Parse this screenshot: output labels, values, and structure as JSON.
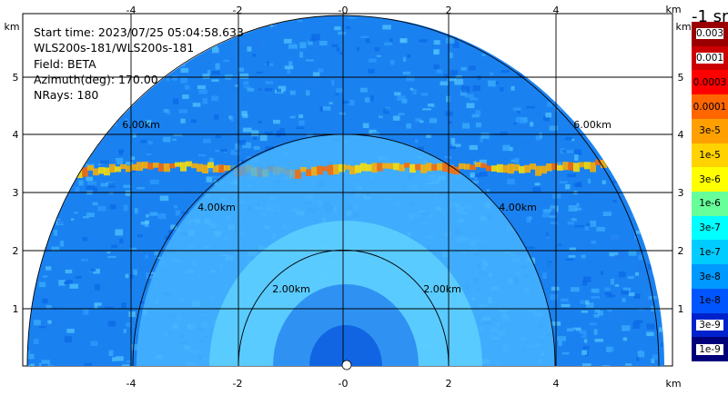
{
  "info": {
    "start_time": "Start time: 2023/07/25 05:04:58.633",
    "instrument": "WLS200s-181/WLS200s-181",
    "field": "Field: BETA",
    "azimuth": "Azimuth(deg): 170.00",
    "nrays": "NRays: 180"
  },
  "axes": {
    "x_unit": "km",
    "y_unit": "km",
    "x_ticks": [
      "-4",
      "-2",
      "-0",
      "2",
      "4"
    ],
    "y_ticks": [
      "1",
      "2",
      "3",
      "4",
      "5"
    ]
  },
  "range_rings": [
    "2.00km",
    "4.00km",
    "6.00km"
  ],
  "colorbar": {
    "title": "-1 sr",
    "labels": [
      "0.003",
      "0.001",
      "0.0003",
      "0.0001",
      "3e-5",
      "1e-5",
      "3e-6",
      "1e-6",
      "3e-7",
      "1e-7",
      "3e-8",
      "1e-8",
      "3e-9",
      "1e-9"
    ],
    "colors": [
      "#9a0000",
      "#cc0000",
      "#ff0000",
      "#ff6600",
      "#ffa000",
      "#ffd200",
      "#ffff00",
      "#66ff99",
      "#00ffff",
      "#00ccff",
      "#0099ff",
      "#0055ff",
      "#0022cc",
      "#00007a"
    ]
  },
  "colors": {
    "background": "#0066ff",
    "mid": "#33aaff",
    "near": "#66ccff",
    "layer": "#ffaa00"
  }
}
